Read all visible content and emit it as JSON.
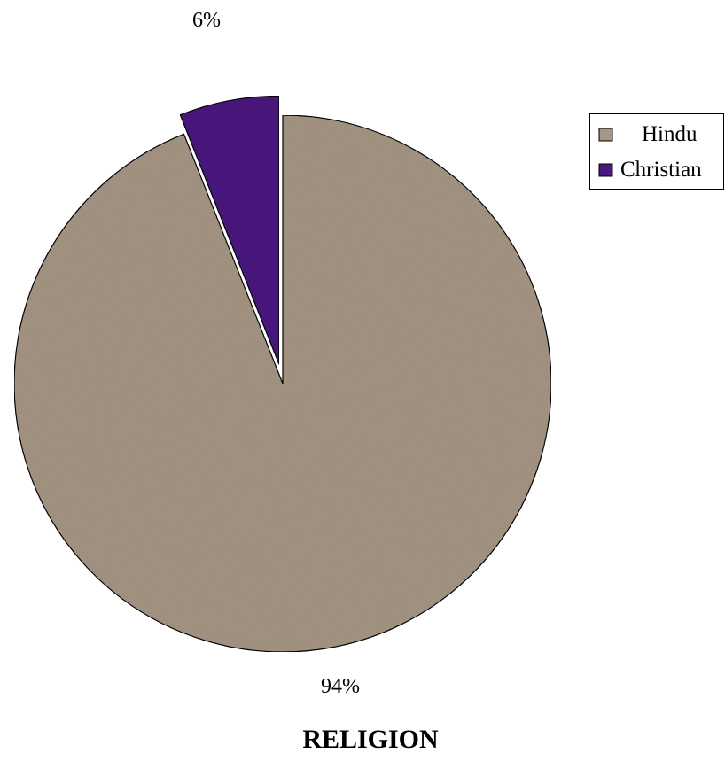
{
  "chart_data": {
    "type": "pie",
    "title": "RELIGION",
    "slices": [
      {
        "label": "Hindu",
        "value": 94,
        "data_label": "94%",
        "color": "#a69685",
        "exploded": false
      },
      {
        "label": "Christian",
        "value": 6,
        "data_label": "6%",
        "color": "#4b1680",
        "exploded": true
      }
    ],
    "legend": {
      "position": "right",
      "entries": [
        "Hindu",
        "Christian"
      ]
    }
  }
}
